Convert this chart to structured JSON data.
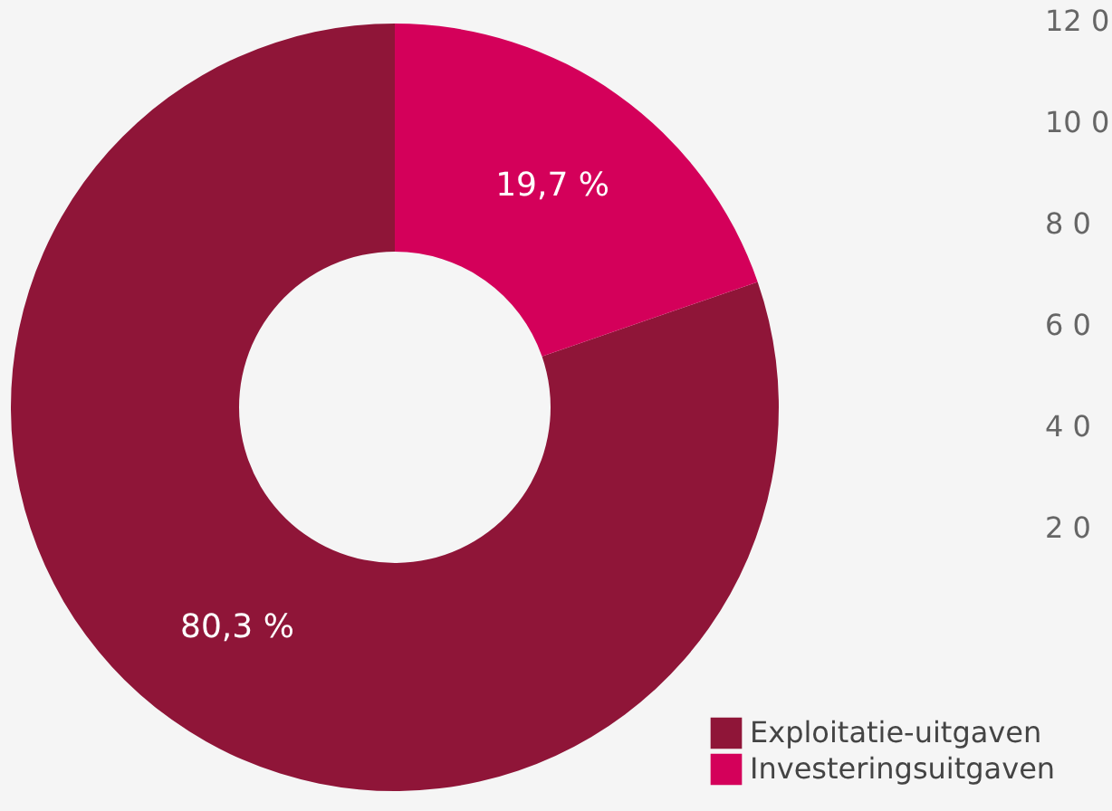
{
  "chart_data": {
    "type": "donut",
    "categories": [
      "Exploitatie-uitgaven",
      "Investeringsuitgaven"
    ],
    "values": [
      80.3,
      19.7
    ],
    "colors": [
      "#8f1538",
      "#d4005a"
    ],
    "value_labels": [
      "80,3 %",
      "19,7 %"
    ],
    "legend": "bottom right",
    "annotations": [
      "12 0",
      "10 0",
      "8 0",
      "6 0",
      "4 0",
      "2 0"
    ]
  }
}
